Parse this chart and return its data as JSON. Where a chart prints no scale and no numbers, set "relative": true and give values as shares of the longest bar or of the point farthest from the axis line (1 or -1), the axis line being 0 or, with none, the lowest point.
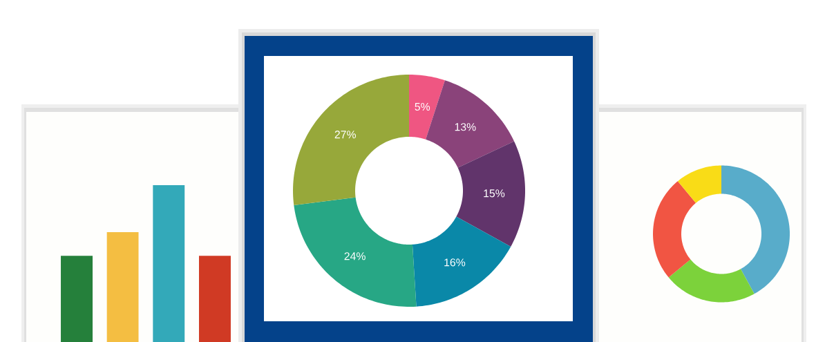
{
  "chart_data": [
    {
      "type": "bar",
      "categories": [
        null,
        null,
        null,
        null
      ],
      "values": [
        0.55,
        0.7,
        1,
        0.55
      ],
      "colors": [
        "#25803b",
        "#f4be42",
        "#33a9b9",
        "#d03a24"
      ],
      "relative": true
    },
    {
      "type": "donut",
      "categories": [
        null,
        null,
        null,
        null,
        null,
        null
      ],
      "values": [
        5,
        13,
        15,
        16,
        24,
        27
      ],
      "colors": [
        "#ef5682",
        "#8a437a",
        "#61346b",
        "#0a88a8",
        "#27a785",
        "#97a83a"
      ],
      "value_labels": [
        "5%",
        "13%",
        "15%",
        "16%",
        "24%",
        "27%"
      ]
    },
    {
      "type": "donut",
      "categories": [
        null,
        null,
        null,
        null
      ],
      "values": [
        42,
        22,
        25,
        11
      ],
      "colors": [
        "#58acca",
        "#7cd23b",
        "#f15543",
        "#f9dc17"
      ]
    }
  ]
}
